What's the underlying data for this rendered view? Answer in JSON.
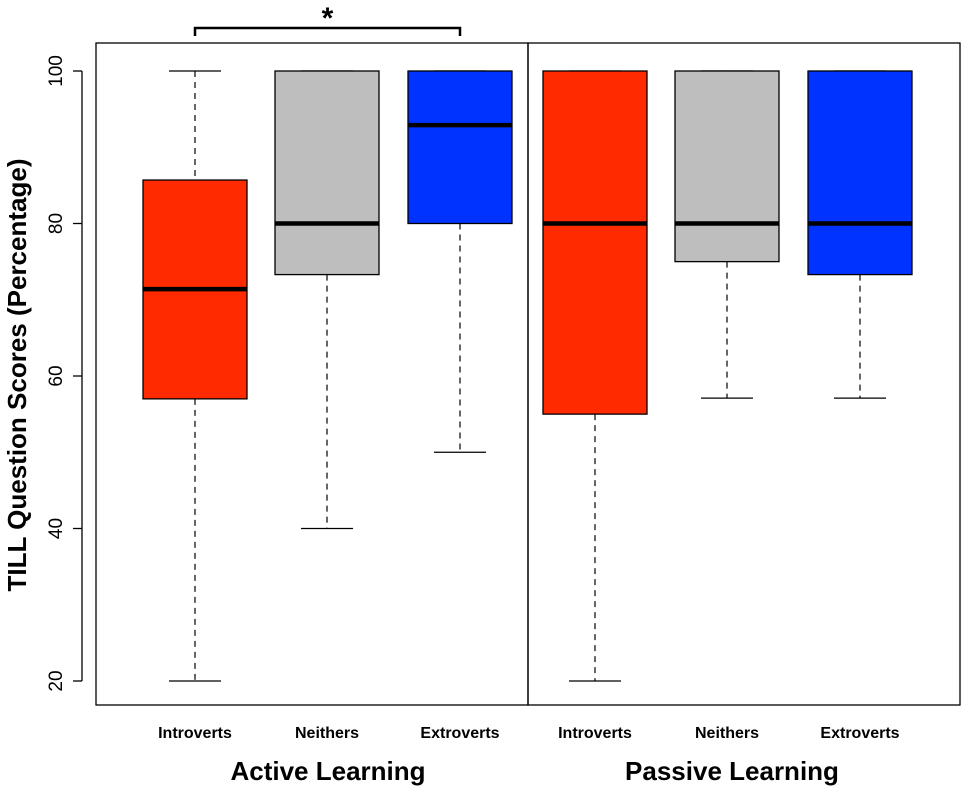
{
  "chart_data": {
    "type": "box",
    "ylabel": "TILL Question Scores (Percentage)",
    "ylim": [
      17,
      103.5
    ],
    "yticks": [
      20,
      40,
      60,
      80,
      100
    ],
    "groups": [
      {
        "name": "Active Learning",
        "boxes": [
          {
            "category": "Introverts",
            "min": 20,
            "q1": 57,
            "median": 71.4,
            "q3": 85.7,
            "max": 100,
            "color": "#ff2a00"
          },
          {
            "category": "Neithers",
            "min": 40,
            "q1": 73.3,
            "median": 80,
            "q3": 100,
            "max": 100,
            "color": "#bebebe"
          },
          {
            "category": "Extroverts",
            "min": 50,
            "q1": 80,
            "median": 92.9,
            "q3": 100,
            "max": 100,
            "color": "#0033ff"
          }
        ]
      },
      {
        "name": "Passive Learning",
        "boxes": [
          {
            "category": "Introverts",
            "min": 20,
            "q1": 55,
            "median": 80,
            "q3": 100,
            "max": 100,
            "color": "#ff2a00"
          },
          {
            "category": "Neithers",
            "min": 57.1,
            "q1": 75,
            "median": 80,
            "q3": 100,
            "max": 100,
            "color": "#bebebe"
          },
          {
            "category": "Extroverts",
            "min": 57.1,
            "q1": 73.3,
            "median": 80,
            "q3": 100,
            "max": 100,
            "color": "#0033ff"
          }
        ]
      }
    ],
    "annotations": [
      {
        "text": "*",
        "from": "Active Learning: Introverts",
        "to": "Active Learning: Extroverts"
      }
    ]
  }
}
